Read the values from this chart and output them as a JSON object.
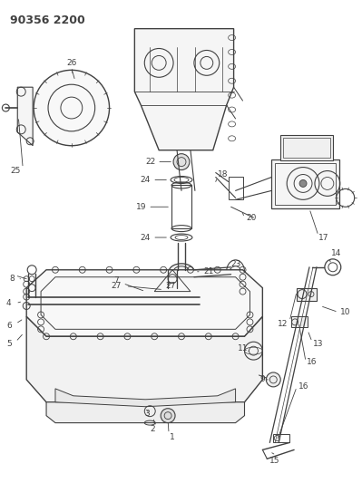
{
  "title": "90356 2200",
  "bg_color": "#ffffff",
  "lc": "#404040",
  "figsize": [
    3.99,
    5.33
  ],
  "dpi": 100
}
